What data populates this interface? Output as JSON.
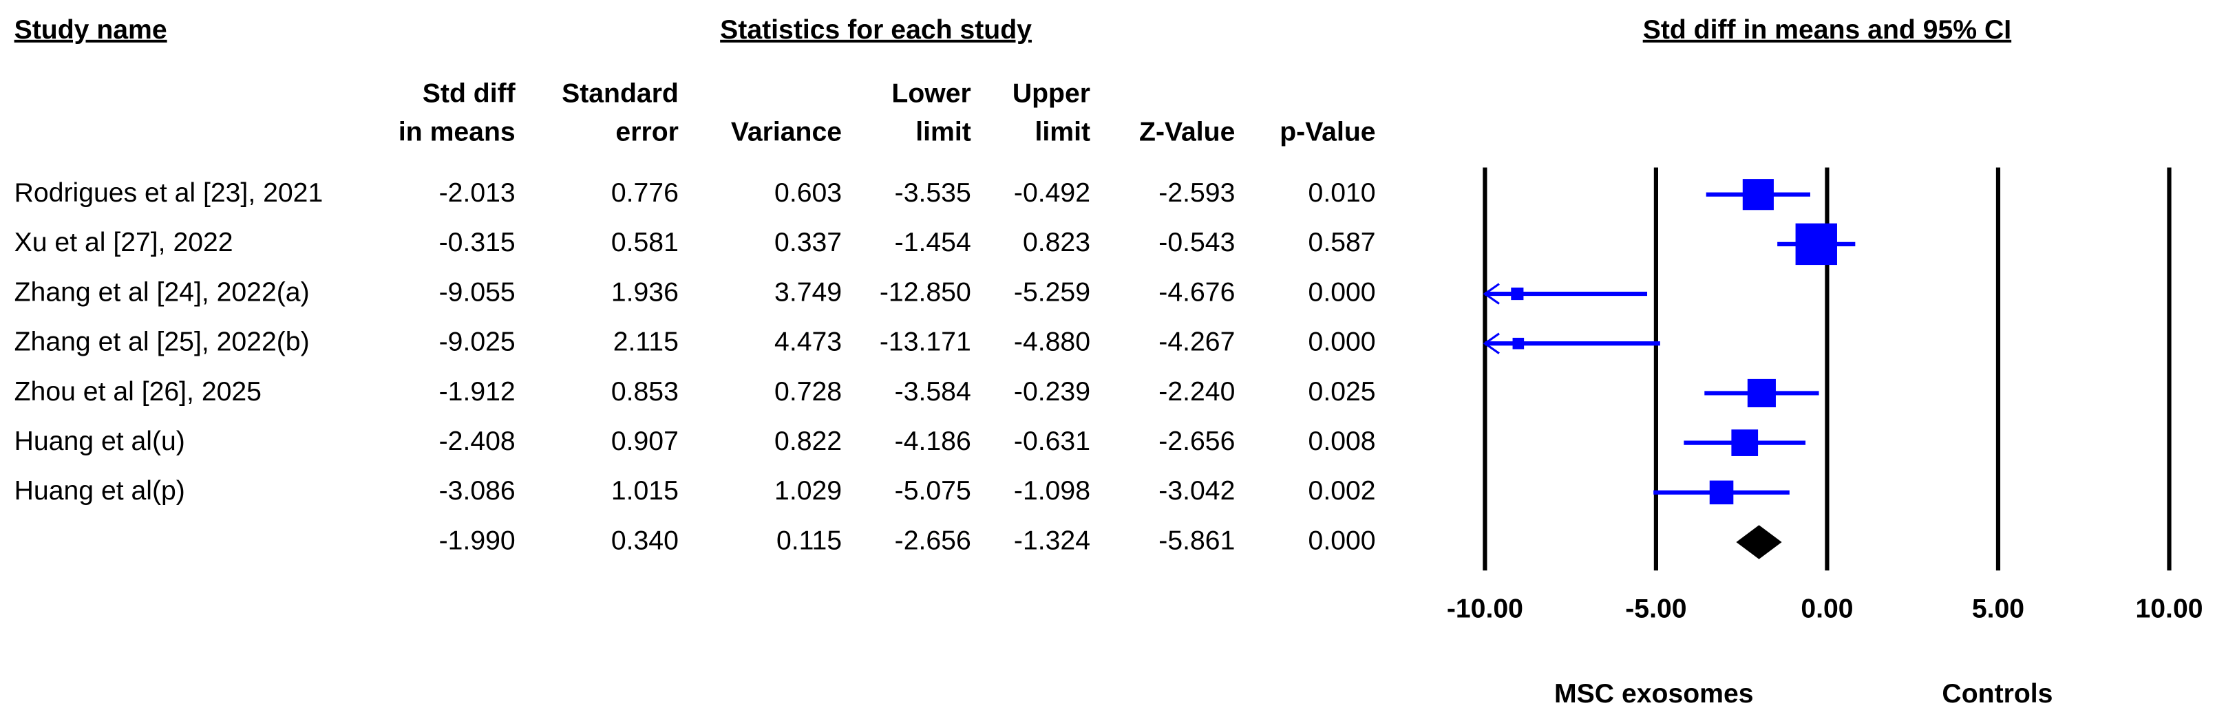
{
  "chart_data": {
    "type": "forest",
    "title": "Std diff in means and 95% CI",
    "study_header": "Study name",
    "stats_header": "Statistics for each study",
    "studies": [
      "Rodrigues et al [23], 2021",
      "Xu et al [27], 2022",
      "Zhang et al [24], 2022(a)",
      "Zhang et al [25], 2022(b)",
      "Zhou et al [26], 2025",
      "Huang et al(u)",
      "Huang et al(p)",
      null
    ],
    "effect": {
      "header": [
        "Std diff",
        "in means"
      ],
      "values": [
        -2.013,
        -0.315,
        -9.055,
        -9.025,
        -1.912,
        -2.408,
        -3.086,
        -1.99
      ],
      "value_labels": [
        "-2.013",
        "-0.315",
        "-9.055",
        "-9.025",
        "-1.912",
        "-2.408",
        "-3.086",
        "-1.990"
      ]
    },
    "se": {
      "header": [
        "Standard",
        "error"
      ],
      "values": [
        0.776,
        0.581,
        1.936,
        2.115,
        0.853,
        0.907,
        1.015,
        0.34
      ],
      "value_labels": [
        "0.776",
        "0.581",
        "1.936",
        "2.115",
        "0.853",
        "0.907",
        "1.015",
        "0.340"
      ]
    },
    "variance": {
      "header": [
        "Variance"
      ],
      "values": [
        0.603,
        0.337,
        3.749,
        4.473,
        0.728,
        0.822,
        1.029,
        0.115
      ],
      "value_labels": [
        "0.603",
        "0.337",
        "3.749",
        "4.473",
        "0.728",
        "0.822",
        "1.029",
        "0.115"
      ]
    },
    "lower": {
      "header": [
        "Lower",
        "limit"
      ],
      "values": [
        -3.535,
        -1.454,
        -12.85,
        -13.171,
        -3.584,
        -4.186,
        -5.075,
        -2.656
      ],
      "value_labels": [
        "-3.535",
        "-1.454",
        "-12.850",
        "-13.171",
        "-3.584",
        "-4.186",
        "-5.075",
        "-2.656"
      ]
    },
    "upper": {
      "header": [
        "Upper",
        "limit"
      ],
      "values": [
        -0.492,
        0.823,
        -5.259,
        -4.88,
        -0.239,
        -0.631,
        -1.098,
        -1.324
      ],
      "value_labels": [
        "-0.492",
        "0.823",
        "-5.259",
        "-4.880",
        "-0.239",
        "-0.631",
        "-1.098",
        "-1.324"
      ]
    },
    "z": {
      "header": [
        "Z-Value"
      ],
      "values": [
        -2.593,
        -0.543,
        -4.676,
        -4.267,
        -2.24,
        -2.656,
        -3.042,
        -5.861
      ],
      "value_labels": [
        "-2.593",
        "-0.543",
        "-4.676",
        "-4.267",
        "-2.240",
        "-2.656",
        "-3.042",
        "-5.861"
      ]
    },
    "p": {
      "header": [
        "p-Value"
      ],
      "values": [
        0.01,
        0.587,
        0.0,
        0.0,
        0.025,
        0.008,
        0.002,
        0.0
      ],
      "value_labels": [
        "0.010",
        "0.587",
        "0.000",
        "0.000",
        "0.025",
        "0.008",
        "0.002",
        "0.000"
      ]
    },
    "xlim": [
      -10,
      10
    ],
    "xticks": [
      {
        "value": -10,
        "label": "-10.00"
      },
      {
        "value": -5,
        "label": "-5.00"
      },
      {
        "value": 0,
        "label": "0.00"
      },
      {
        "value": 5,
        "label": "5.00"
      },
      {
        "value": 10,
        "label": "10.00"
      }
    ],
    "xlabel_left": "MSC exosomes",
    "xlabel_right": "Controls",
    "color": "#0000ff",
    "summary_color": "#000000"
  }
}
